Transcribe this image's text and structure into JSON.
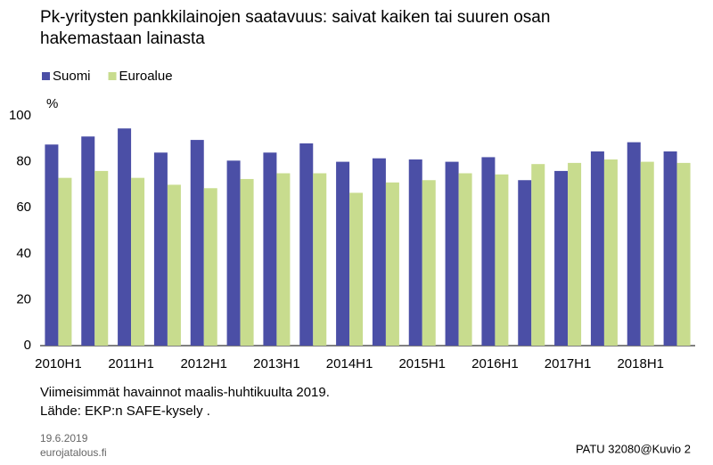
{
  "chart_data": {
    "type": "bar",
    "title": "Pk-yritysten pankkilainojen saatavuus: saivat kaiken tai suuren osan hakemastaan lainasta",
    "y_label": "%",
    "categories": [
      "2010H1",
      null,
      "2011H1",
      null,
      "2012H1",
      null,
      "2013H1",
      null,
      "2014H1",
      null,
      "2015H1",
      null,
      "2016H1",
      null,
      "2017H1",
      null,
      "2018H1",
      null
    ],
    "series": [
      {
        "name": "Suomi",
        "color": "#4b4fa6",
        "values": [
          87.5,
          91,
          94.5,
          84,
          89.5,
          80.5,
          84,
          88,
          80,
          81.5,
          81,
          80,
          82,
          72,
          76,
          84.5,
          88.5,
          84.5
        ]
      },
      {
        "name": "Euroalue",
        "color": "#c8dc8e",
        "values": [
          73,
          76,
          73,
          70,
          68.5,
          72.5,
          75,
          75,
          66.5,
          71,
          72,
          75,
          74.5,
          79,
          79.5,
          81,
          80,
          79.5
        ]
      }
    ],
    "ylim": [
      0,
      100
    ],
    "yticks": [
      0,
      20,
      40,
      60,
      80,
      100
    ],
    "grid": false,
    "notes": [
      "Viimeisimmät havainnot maalis-huhtikuulta 2019.",
      "Lähde: EKP:n SAFE-kysely ."
    ],
    "footer_left": [
      "19.6.2019",
      "eurojatalous.fi"
    ],
    "footer_right": "PATU 32080@Kuvio 2"
  }
}
